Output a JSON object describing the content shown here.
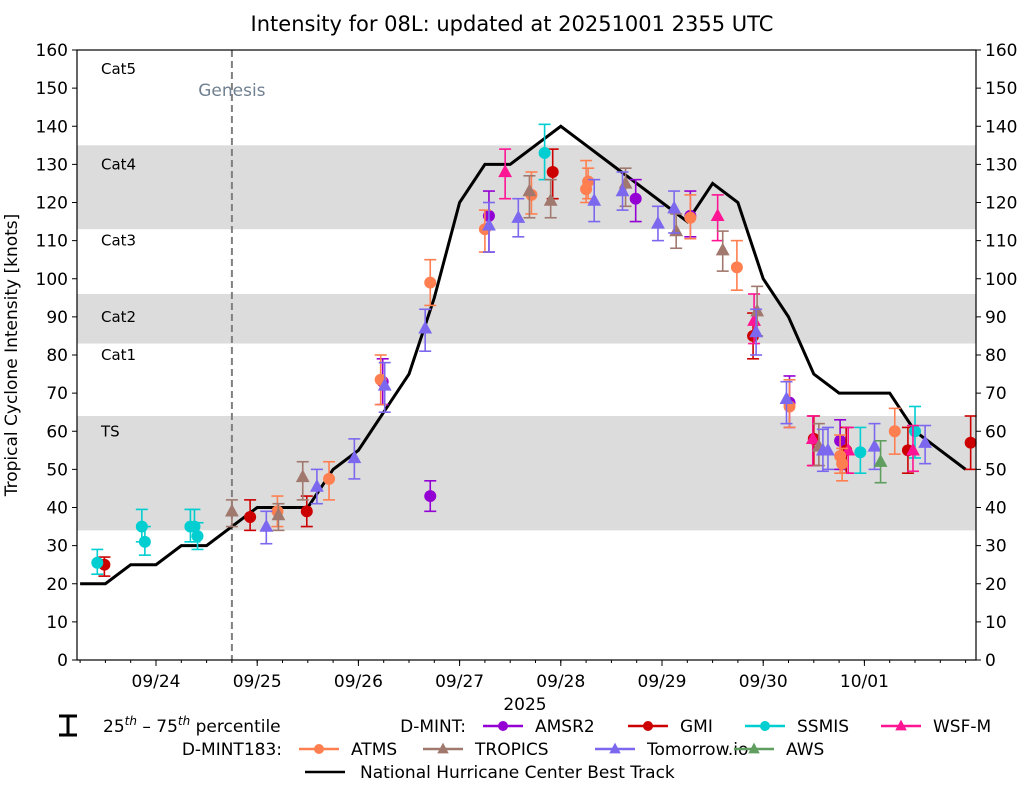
{
  "chart_data": {
    "type": "scatter",
    "title": "Intensity for 08L: updated at 20251001 2355 UTC",
    "xlabel": "2025",
    "ylabel": "Tropical Cyclone Intensity [knots]",
    "ylim": [
      0,
      160
    ],
    "yticks": [
      0,
      10,
      20,
      30,
      40,
      50,
      60,
      70,
      80,
      90,
      100,
      110,
      120,
      130,
      140,
      150,
      160
    ],
    "x_unit": "days since 2025-09-23 00:00 UTC",
    "xlim": [
      0.2,
      9.1
    ],
    "xticks": [
      {
        "value": 1,
        "label": "09/24"
      },
      {
        "value": 2,
        "label": "09/25"
      },
      {
        "value": 3,
        "label": "09/26"
      },
      {
        "value": 4,
        "label": "09/27"
      },
      {
        "value": 5,
        "label": "09/28"
      },
      {
        "value": 6,
        "label": "09/29"
      },
      {
        "value": 7,
        "label": "09/30"
      },
      {
        "value": 8,
        "label": "10/01"
      }
    ],
    "minor_tick_step_days": 0.25,
    "grid": false,
    "category_bands": [
      {
        "label": "TS",
        "from": 34,
        "to": 64,
        "shaded": true,
        "label_y": 60
      },
      {
        "label": "Cat1",
        "from": 64,
        "to": 83,
        "shaded": false,
        "label_y": 80
      },
      {
        "label": "Cat2",
        "from": 83,
        "to": 96,
        "shaded": true,
        "label_y": 90
      },
      {
        "label": "Cat3",
        "from": 96,
        "to": 113,
        "shaded": false,
        "label_y": 110
      },
      {
        "label": "Cat4",
        "from": 113,
        "to": 135,
        "shaded": true,
        "label_y": 130
      },
      {
        "label": "Cat5",
        "from": 135,
        "to": 160,
        "shaded": false,
        "label_y": 155
      }
    ],
    "band_color": "#dcdcdc",
    "genesis": {
      "x": 1.75,
      "label": "Genesis",
      "color": "#808080",
      "label_color": "#708090"
    },
    "best_track": {
      "name": "National Hurricane Center Best Track",
      "color": "#000000",
      "x": [
        0.25,
        0.5,
        0.75,
        1.0,
        1.25,
        1.5,
        1.75,
        2.0,
        2.25,
        2.5,
        2.75,
        3.0,
        3.25,
        3.5,
        3.75,
        4.0,
        4.25,
        4.5,
        4.75,
        5.0,
        5.25,
        5.5,
        5.75,
        6.0,
        6.25,
        6.5,
        6.75,
        7.0,
        7.25,
        7.5,
        7.75,
        8.0,
        8.25,
        8.5,
        8.75,
        9.0
      ],
      "y": [
        20,
        20,
        25,
        25,
        30,
        30,
        35,
        40,
        40,
        40,
        50,
        55,
        65,
        75,
        95,
        120,
        130,
        130,
        135,
        140,
        135,
        130,
        125,
        120,
        115,
        125,
        120,
        100,
        90,
        75,
        70,
        70,
        70,
        60,
        55,
        50
      ]
    },
    "legend": {
      "percentile_label": "25th – 75th percentile",
      "group1_label": "D-MINT:",
      "group2_label": "D-MINT183:",
      "location": "bottom-center"
    },
    "series": [
      {
        "name": "AMSR2",
        "group": "D-MINT",
        "marker": "circle",
        "color": "#9400d3",
        "points": [
          [
            3.24,
            73,
            67,
            79
          ],
          [
            3.71,
            43,
            39,
            47
          ],
          [
            4.29,
            116.5,
            107,
            123
          ],
          [
            5.74,
            121,
            115,
            126
          ],
          [
            6.28,
            116.5,
            111,
            123
          ],
          [
            7.26,
            67.5,
            61,
            74.5
          ],
          [
            7.76,
            57.5,
            50,
            63
          ]
        ]
      },
      {
        "name": "GMI",
        "group": "D-MINT",
        "marker": "circle",
        "color": "#cc0000",
        "points": [
          [
            0.49,
            25,
            22,
            27
          ],
          [
            1.93,
            37.5,
            34,
            42
          ],
          [
            2.49,
            39,
            35,
            43
          ],
          [
            4.92,
            128,
            121,
            134
          ],
          [
            6.9,
            85,
            79,
            91
          ],
          [
            7.5,
            58,
            51,
            64
          ],
          [
            7.82,
            55,
            49,
            61
          ],
          [
            8.43,
            55,
            49,
            61
          ],
          [
            9.05,
            57,
            50,
            64
          ]
        ]
      },
      {
        "name": "SSMIS",
        "group": "D-MINT",
        "marker": "circle",
        "color": "#00ced1",
        "points": [
          [
            0.42,
            25.5,
            22.5,
            29
          ],
          [
            0.86,
            35,
            31,
            39.5
          ],
          [
            0.89,
            31,
            27.5,
            35
          ],
          [
            1.34,
            35,
            31,
            39.5
          ],
          [
            1.38,
            35,
            31,
            39.5
          ],
          [
            1.41,
            32.5,
            29,
            36
          ],
          [
            4.84,
            133,
            126,
            140.5
          ],
          [
            7.96,
            54.5,
            49,
            61
          ],
          [
            8.5,
            60,
            53,
            66.5
          ]
        ]
      },
      {
        "name": "WSF-M",
        "group": "D-MINT",
        "marker": "triangle",
        "color": "#ff1493",
        "points": [
          [
            4.45,
            128,
            121,
            134
          ],
          [
            6.55,
            116.5,
            110,
            122
          ],
          [
            6.91,
            89,
            83,
            96
          ],
          [
            7.49,
            58,
            51,
            64
          ],
          [
            7.84,
            55,
            49,
            61
          ],
          [
            8.48,
            55,
            49.5,
            61.5
          ]
        ]
      },
      {
        "name": "ATMS",
        "group": "D-MINT183",
        "marker": "circle",
        "color": "#ff7f50",
        "points": [
          [
            2.2,
            39,
            35,
            43
          ],
          [
            2.71,
            47.5,
            42,
            52
          ],
          [
            3.22,
            73.5,
            67,
            80
          ],
          [
            3.71,
            99,
            93,
            105
          ],
          [
            4.25,
            113,
            107,
            118
          ],
          [
            4.71,
            122,
            117,
            128
          ],
          [
            5.25,
            123.5,
            120,
            131
          ],
          [
            5.27,
            125.5,
            121,
            129
          ],
          [
            6.28,
            116,
            110.5,
            122
          ],
          [
            6.74,
            103,
            97,
            110
          ],
          [
            7.26,
            66.5,
            61,
            73.5
          ],
          [
            7.76,
            53.5,
            49,
            59
          ],
          [
            7.78,
            51.5,
            47,
            55.5
          ],
          [
            8.3,
            60,
            54,
            66
          ]
        ]
      },
      {
        "name": "TROPICS",
        "group": "D-MINT183",
        "marker": "triangle",
        "color": "#a0786e",
        "points": [
          [
            1.75,
            39,
            35,
            42
          ],
          [
            2.21,
            38,
            34,
            41
          ],
          [
            2.45,
            48,
            42,
            52
          ],
          [
            4.69,
            123,
            116,
            127
          ],
          [
            4.9,
            120.5,
            116,
            126
          ],
          [
            5.64,
            125,
            119,
            129
          ],
          [
            6.14,
            112.5,
            108,
            117
          ],
          [
            6.6,
            107.5,
            102,
            112.5
          ],
          [
            6.94,
            91.5,
            85,
            98
          ],
          [
            7.55,
            56,
            51,
            62
          ]
        ]
      },
      {
        "name": "Tomorrow.io",
        "group": "D-MINT183",
        "marker": "triangle",
        "color": "#7b68ee",
        "points": [
          [
            2.09,
            35,
            30.5,
            39
          ],
          [
            2.59,
            45.5,
            41,
            50
          ],
          [
            2.96,
            53,
            47.5,
            58
          ],
          [
            3.26,
            72,
            65,
            78
          ],
          [
            3.66,
            87,
            81,
            92
          ],
          [
            4.29,
            114,
            107,
            120
          ],
          [
            4.58,
            116,
            111,
            121
          ],
          [
            5.33,
            120.5,
            115,
            126
          ],
          [
            5.61,
            123,
            118,
            128
          ],
          [
            5.96,
            114.5,
            110,
            119
          ],
          [
            6.12,
            118.5,
            112,
            123
          ],
          [
            6.93,
            86,
            80,
            92
          ],
          [
            7.23,
            68.5,
            62,
            73
          ],
          [
            7.59,
            55,
            49.5,
            60.5
          ],
          [
            7.64,
            55,
            50,
            61
          ],
          [
            8.1,
            56,
            50,
            62
          ],
          [
            8.6,
            57,
            51.5,
            61.5
          ]
        ]
      },
      {
        "name": "AWS",
        "group": "D-MINT183",
        "marker": "triangle",
        "color": "#5f9e5f",
        "points": [
          [
            8.16,
            52,
            46.5,
            57.5
          ]
        ]
      }
    ]
  }
}
